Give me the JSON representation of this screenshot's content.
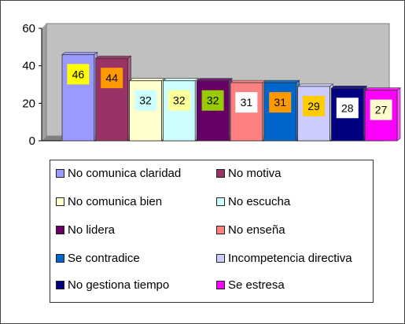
{
  "chart_data": {
    "type": "bar",
    "title": "",
    "xlabel": "",
    "ylabel": "",
    "ylim": [
      0,
      60
    ],
    "yticks": [
      0,
      20,
      40,
      60
    ],
    "grid": false,
    "legend_position": "bottom",
    "plot_background": "#c0c0c0",
    "categories": [
      "No comunica claridad",
      "No motiva",
      "No comunica bien",
      "No escucha",
      "No lidera",
      "No enseña",
      "Se contradice",
      "Incompetencia directiva",
      "No gestiona tiempo",
      "Se estresa"
    ],
    "values": [
      46,
      44,
      32,
      32,
      32,
      31,
      31,
      29,
      28,
      27
    ],
    "colors": [
      "#9999ff",
      "#993366",
      "#ffffcc",
      "#ccffff",
      "#660066",
      "#ff8080",
      "#0066cc",
      "#ccccff",
      "#000080",
      "#ff00ff"
    ],
    "label_box_colors": [
      "#ffff00",
      "#ff9900",
      "#ccffff",
      "#ffff99",
      "#99cc00",
      "#ffffff",
      "#ff9900",
      "#ffcc00",
      "#ffffff",
      "#ffffcc"
    ]
  }
}
